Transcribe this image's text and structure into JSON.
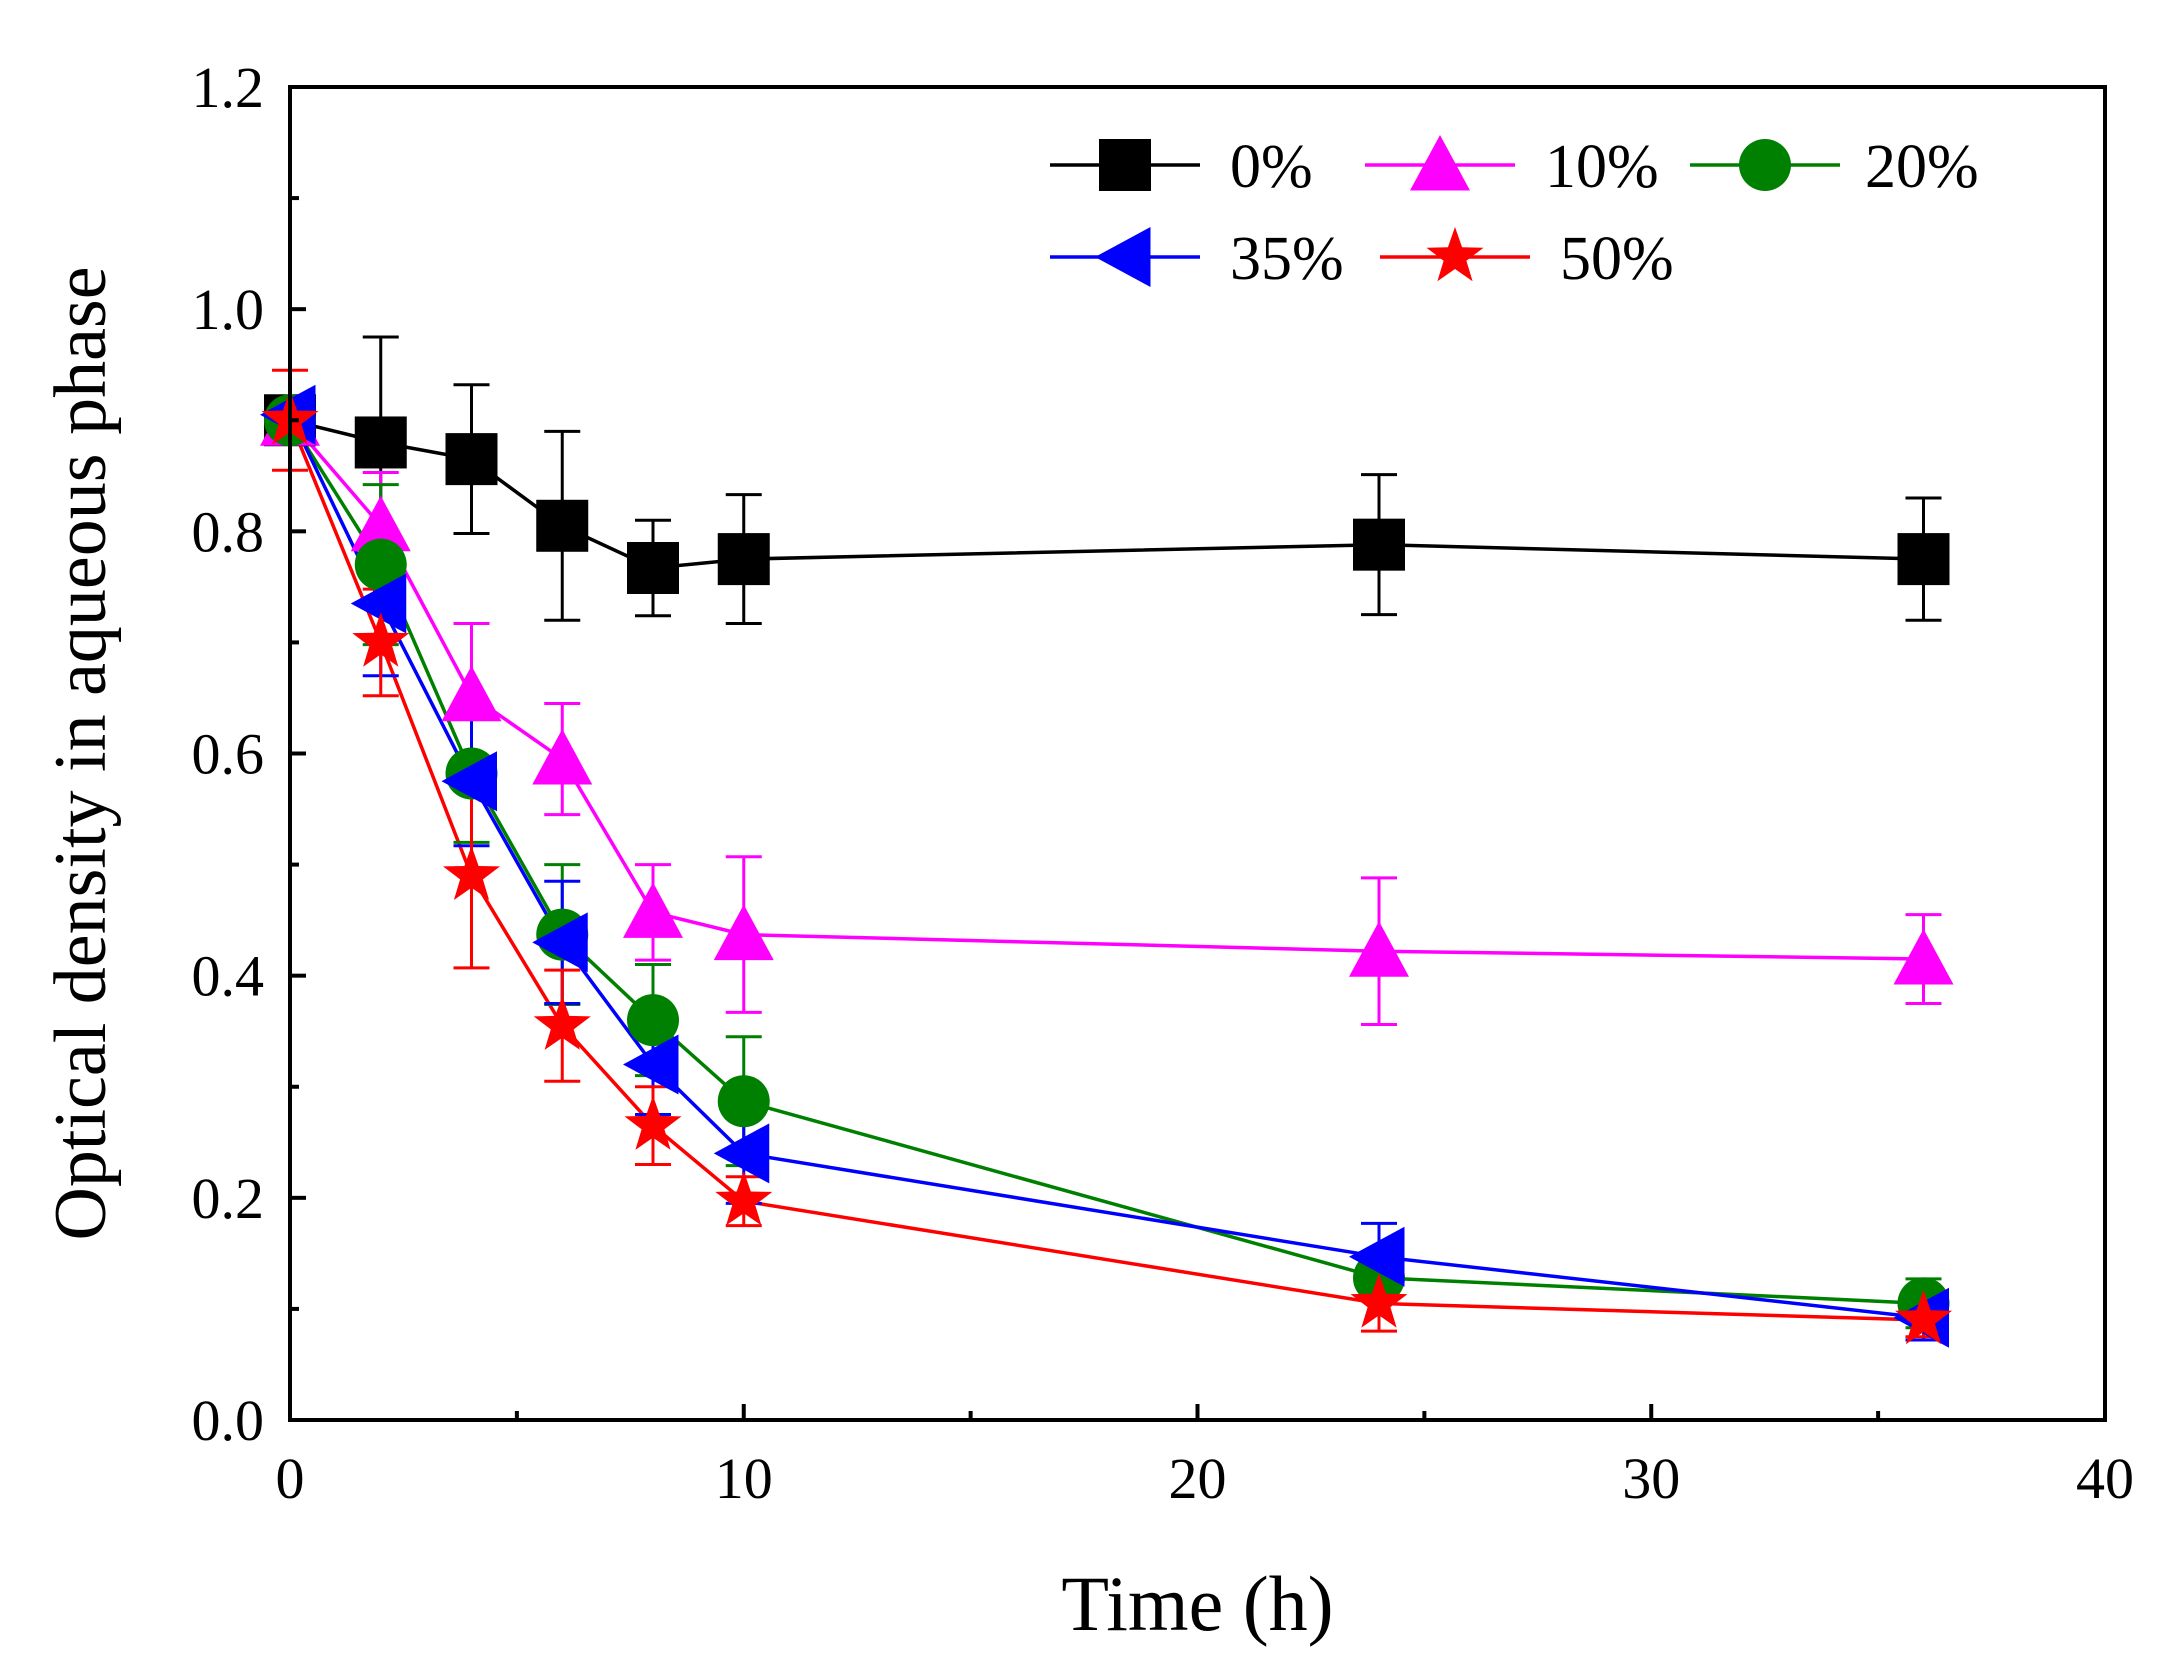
{
  "chart_data": {
    "type": "line",
    "title": "",
    "xlabel": "Time (h)",
    "ylabel": "Optical density in aqueous phase",
    "xlim": [
      0,
      40
    ],
    "ylim": [
      0,
      1.2
    ],
    "xticks": [
      0,
      10,
      20,
      30,
      40
    ],
    "xtick_labels": [
      "0",
      "10",
      "20",
      "30",
      "40"
    ],
    "yticks": [
      0.0,
      0.2,
      0.4,
      0.6,
      0.8,
      1.0,
      1.2
    ],
    "ytick_labels": [
      "0.0",
      "0.2",
      "0.4",
      "0.6",
      "0.8",
      "1.0",
      "1.2"
    ],
    "grid": false,
    "legend_position": "top-right",
    "series": [
      {
        "name": "0%",
        "color": "#000000",
        "marker": "square",
        "x": [
          0,
          2,
          4,
          6,
          8,
          10,
          24,
          36
        ],
        "y": [
          0.9,
          0.88,
          0.865,
          0.805,
          0.767,
          0.775,
          0.788,
          0.775
        ],
        "err": [
          0.0,
          0.095,
          0.067,
          0.085,
          0.043,
          0.058,
          0.063,
          0.055
        ]
      },
      {
        "name": "10%",
        "color": "#ff00ff",
        "marker": "triangle-up",
        "x": [
          0,
          2,
          4,
          6,
          8,
          10,
          24,
          36
        ],
        "y": [
          0.9,
          0.805,
          0.652,
          0.595,
          0.457,
          0.437,
          0.422,
          0.415
        ],
        "err": [
          0.0,
          0.048,
          0.065,
          0.05,
          0.043,
          0.07,
          0.066,
          0.04
        ]
      },
      {
        "name": "20%",
        "color": "#008000",
        "marker": "circle",
        "x": [
          0,
          2,
          4,
          6,
          8,
          10,
          24,
          36
        ],
        "y": [
          0.9,
          0.77,
          0.582,
          0.437,
          0.36,
          0.287,
          0.128,
          0.105
        ],
        "err": [
          0.0,
          0.072,
          0.062,
          0.063,
          0.05,
          0.058,
          0.02,
          0.022
        ]
      },
      {
        "name": "35%",
        "color": "#0000ff",
        "marker": "triangle-left",
        "x": [
          0,
          2,
          4,
          6,
          8,
          10,
          24,
          36
        ],
        "y": [
          0.905,
          0.735,
          0.575,
          0.43,
          0.32,
          0.24,
          0.147,
          0.092
        ],
        "err": [
          0.0,
          0.065,
          0.058,
          0.055,
          0.045,
          0.045,
          0.03,
          0.02
        ]
      },
      {
        "name": "50%",
        "color": "#ff0000",
        "marker": "star",
        "x": [
          0,
          2,
          4,
          6,
          8,
          10,
          24,
          36
        ],
        "y": [
          0.9,
          0.7,
          0.49,
          0.355,
          0.265,
          0.197,
          0.105,
          0.09
        ],
        "err": [
          0.045,
          0.048,
          0.083,
          0.05,
          0.035,
          0.022,
          0.025,
          0.015
        ]
      }
    ]
  }
}
